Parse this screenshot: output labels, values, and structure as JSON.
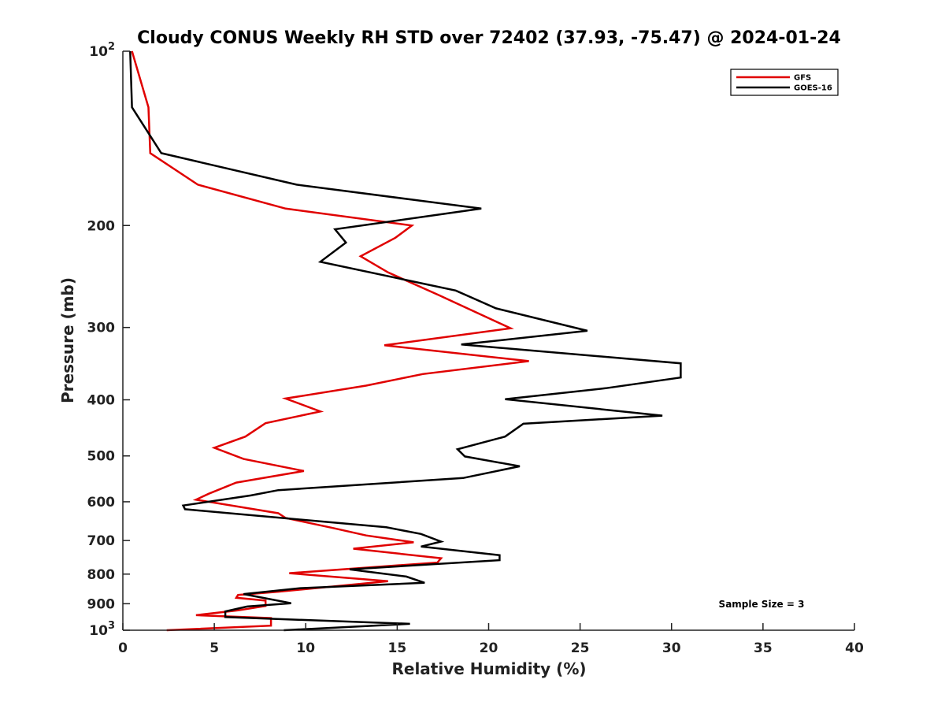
{
  "chart_data": {
    "type": "line",
    "title": "Cloudy CONUS Weekly RH STD over 72402 (37.93, -75.47) @ 2024-01-24",
    "xlabel": "Relative Humidity (%)",
    "ylabel": "Pressure (mb)",
    "xlim": [
      0,
      40
    ],
    "ylim": [
      100,
      1000
    ],
    "y_scale": "log",
    "y_reversed": true,
    "grid": false,
    "legend_position": "top-right",
    "x_ticks": [
      "0",
      "5",
      "10",
      "15",
      "20",
      "25",
      "30",
      "35",
      "40"
    ],
    "y_ticks": [
      {
        "value": 100,
        "label": "10",
        "sup": "2"
      },
      {
        "value": 200,
        "label": "200",
        "sup": ""
      },
      {
        "value": 300,
        "label": "300",
        "sup": ""
      },
      {
        "value": 400,
        "label": "400",
        "sup": ""
      },
      {
        "value": 500,
        "label": "500",
        "sup": ""
      },
      {
        "value": 600,
        "label": "600",
        "sup": ""
      },
      {
        "value": 700,
        "label": "700",
        "sup": ""
      },
      {
        "value": 800,
        "label": "800",
        "sup": ""
      },
      {
        "value": 900,
        "label": "900",
        "sup": ""
      },
      {
        "value": 1000,
        "label": "10",
        "sup": "3"
      }
    ],
    "annotation": "Sample Size = 3",
    "series": [
      {
        "name": "GFS",
        "color": "#e00000",
        "points": [
          [
            0.5,
            100
          ],
          [
            1.4,
            125
          ],
          [
            1.5,
            150
          ],
          [
            4.1,
            170
          ],
          [
            8.9,
            187
          ],
          [
            15.8,
            200
          ],
          [
            14.9,
            210
          ],
          [
            13.0,
            226
          ],
          [
            14.5,
            241
          ],
          [
            17.3,
            264
          ],
          [
            21.2,
            301
          ],
          [
            14.3,
            322
          ],
          [
            22.2,
            343
          ],
          [
            16.4,
            361
          ],
          [
            13.3,
            378
          ],
          [
            8.9,
            398
          ],
          [
            10.8,
            419
          ],
          [
            7.8,
            439
          ],
          [
            6.7,
            463
          ],
          [
            5.0,
            484
          ],
          [
            6.6,
            506
          ],
          [
            9.9,
            531
          ],
          [
            6.2,
            556
          ],
          [
            4.7,
            581
          ],
          [
            4.0,
            595
          ],
          [
            8.5,
            628
          ],
          [
            8.9,
            640
          ],
          [
            11.5,
            666
          ],
          [
            13.3,
            686
          ],
          [
            15.9,
            705
          ],
          [
            12.6,
            723
          ],
          [
            17.4,
            751
          ],
          [
            17.2,
            764
          ],
          [
            9.1,
            797
          ],
          [
            14.5,
            823
          ],
          [
            8.5,
            858
          ],
          [
            6.3,
            869
          ],
          [
            6.2,
            879
          ],
          [
            7.8,
            889
          ],
          [
            7.8,
            908
          ],
          [
            6.3,
            924
          ],
          [
            4.0,
            942
          ],
          [
            8.1,
            953
          ],
          [
            8.1,
            982
          ],
          [
            2.4,
            1000
          ]
        ]
      },
      {
        "name": "GOES-16",
        "color": "#000000",
        "points": [
          [
            0.4,
            100
          ],
          [
            0.5,
            125
          ],
          [
            2.1,
            150
          ],
          [
            9.5,
            170
          ],
          [
            19.6,
            187
          ],
          [
            11.6,
            203
          ],
          [
            12.2,
            214
          ],
          [
            10.8,
            231
          ],
          [
            18.2,
            259
          ],
          [
            20.4,
            278
          ],
          [
            25.4,
            304
          ],
          [
            18.5,
            321
          ],
          [
            30.5,
            346
          ],
          [
            30.5,
            366
          ],
          [
            26.4,
            382
          ],
          [
            20.9,
            399
          ],
          [
            29.5,
            426
          ],
          [
            21.9,
            440
          ],
          [
            20.9,
            463
          ],
          [
            18.3,
            487
          ],
          [
            18.7,
            501
          ],
          [
            21.7,
            521
          ],
          [
            18.6,
            546
          ],
          [
            8.5,
            573
          ],
          [
            7.0,
            585
          ],
          [
            3.3,
            609
          ],
          [
            3.4,
            618
          ],
          [
            14.4,
            664
          ],
          [
            16.3,
            682
          ],
          [
            17.4,
            703
          ],
          [
            16.3,
            717
          ],
          [
            20.6,
            742
          ],
          [
            20.6,
            757
          ],
          [
            12.4,
            785
          ],
          [
            15.5,
            808
          ],
          [
            16.5,
            828
          ],
          [
            9.7,
            846
          ],
          [
            6.6,
            866
          ],
          [
            9.2,
            898
          ],
          [
            6.8,
            910
          ],
          [
            5.6,
            928
          ],
          [
            5.6,
            949
          ],
          [
            15.7,
            975
          ],
          [
            8.8,
            1000
          ]
        ]
      }
    ]
  }
}
